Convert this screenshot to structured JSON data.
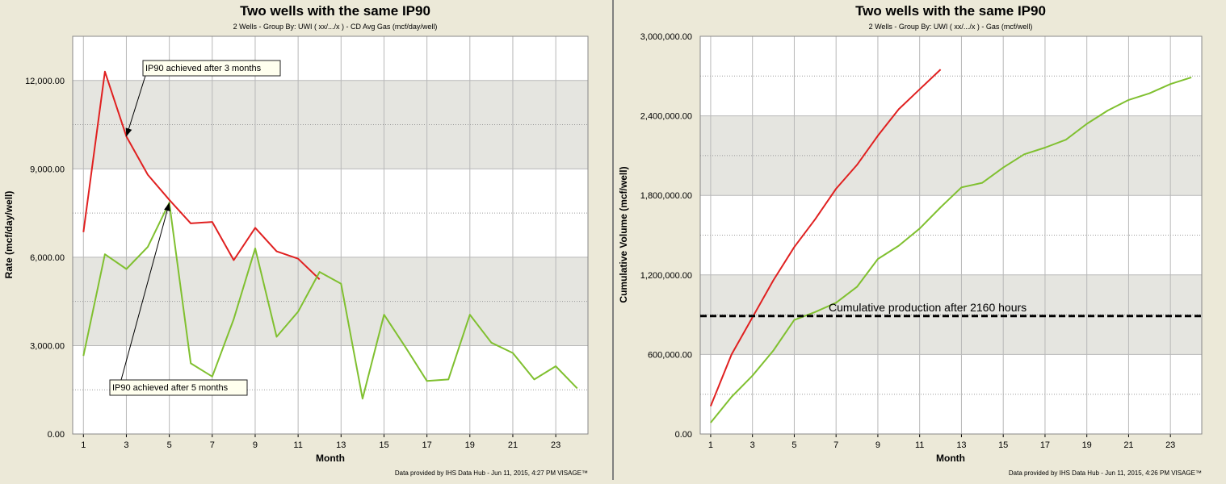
{
  "colors": {
    "panel_bg": "#ece9d8",
    "plot_bg": "#ffffff",
    "band": "#e5e5e0",
    "grid": "#b8b8b8",
    "well_red": "#e02020",
    "well_green": "#80c030",
    "divider": "#808080"
  },
  "chart_data": [
    {
      "type": "line",
      "title": "Two wells with the same IP90",
      "subtitle": "2 Wells - Group By: UWI ( xx/.../x ) - CD Avg Gas (mcf/day/well)",
      "xlabel": "Month",
      "ylabel": "Rate (mcf/day/well)",
      "xlim": [
        0.5,
        24.5
      ],
      "ylim": [
        0,
        13500
      ],
      "x_ticks": [
        1,
        3,
        5,
        7,
        9,
        11,
        13,
        15,
        17,
        19,
        21,
        23
      ],
      "x_tick_labels": [
        "1",
        "3",
        "5",
        "7",
        "9",
        "11",
        "13",
        "15",
        "17",
        "19",
        "21",
        "23"
      ],
      "y_ticks": [
        0,
        3000,
        6000,
        9000,
        12000
      ],
      "y_tick_labels": [
        "0.00",
        "3,000.00",
        "6,000.00",
        "9,000.00",
        "12,000.00"
      ],
      "grid": true,
      "series": [
        {
          "color": "#e02020",
          "x": [
            1,
            2,
            3,
            4,
            5,
            6,
            7,
            8,
            9,
            10,
            11,
            12
          ],
          "values": [
            6850,
            12300,
            10100,
            8800,
            7950,
            7150,
            7200,
            5900,
            7000,
            6200,
            5950,
            5250
          ]
        },
        {
          "color": "#80c030",
          "x": [
            1,
            2,
            3,
            4,
            5,
            6,
            7,
            8,
            9,
            10,
            11,
            12,
            13,
            14,
            15,
            16,
            17,
            18,
            19,
            20,
            21,
            22,
            23,
            24
          ],
          "values": [
            2650,
            6100,
            5600,
            6350,
            7850,
            2400,
            1950,
            3900,
            6300,
            3300,
            4150,
            5500,
            5100,
            1200,
            4050,
            2950,
            1800,
            1850,
            4050,
            3100,
            2750,
            1850,
            2300,
            1550
          ]
        }
      ],
      "annotations": [
        {
          "text": "IP90 achieved after 3 months",
          "arrow_to": [
            3,
            10100
          ]
        },
        {
          "text": "IP90 achieved after 5 months",
          "arrow_to": [
            5,
            7850
          ]
        }
      ],
      "footer": "Data provided by IHS Data Hub - Jun 11, 2015, 4:27 PM  VISAGE™"
    },
    {
      "type": "line",
      "title": "Two wells with the same IP90",
      "subtitle": "2 Wells - Group By: UWI ( xx/.../x ) - Gas (mcf/well)",
      "xlabel": "Month",
      "ylabel": "Cumulative Volume (mcf/well)",
      "xlim": [
        0.5,
        24.5
      ],
      "ylim": [
        0,
        3000000
      ],
      "x_ticks": [
        1,
        3,
        5,
        7,
        9,
        11,
        13,
        15,
        17,
        19,
        21,
        23
      ],
      "x_tick_labels": [
        "1",
        "3",
        "5",
        "7",
        "9",
        "11",
        "13",
        "15",
        "17",
        "19",
        "21",
        "23"
      ],
      "y_ticks": [
        0,
        600000,
        1200000,
        1800000,
        2400000,
        3000000
      ],
      "y_tick_labels": [
        "0.00",
        "600,000.00",
        "1,200,000.00",
        "1,800,000.00",
        "2,400,000.00",
        "3,000,000.00"
      ],
      "grid": true,
      "series": [
        {
          "color": "#e02020",
          "x": [
            1,
            2,
            3,
            4,
            5,
            6,
            7,
            8,
            9,
            10,
            11,
            12
          ],
          "values": [
            210000,
            600000,
            880000,
            1160000,
            1410000,
            1620000,
            1850000,
            2030000,
            2250000,
            2450000,
            2600000,
            2750000
          ]
        },
        {
          "color": "#80c030",
          "x": [
            1,
            2,
            3,
            4,
            5,
            6,
            7,
            8,
            9,
            10,
            11,
            12,
            13,
            14,
            15,
            16,
            17,
            18,
            19,
            20,
            21,
            22,
            23,
            24
          ],
          "values": [
            85000,
            280000,
            440000,
            630000,
            860000,
            920000,
            990000,
            1110000,
            1320000,
            1420000,
            1550000,
            1710000,
            1860000,
            1895000,
            2010000,
            2110000,
            2160000,
            2220000,
            2340000,
            2440000,
            2520000,
            2570000,
            2640000,
            2690000
          ]
        }
      ],
      "reference_line": {
        "y": 890000,
        "label": "Cumulative production after 2160 hours"
      },
      "footer": "Data provided by IHS Data Hub - Jun 11, 2015, 4:26 PM  VISAGE™"
    }
  ]
}
